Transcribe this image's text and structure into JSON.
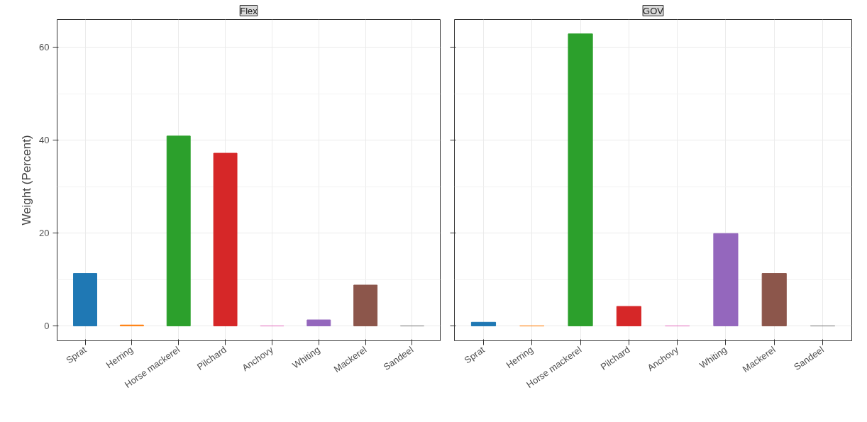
{
  "chart_data": [
    {
      "type": "bar",
      "title": "Flex",
      "ylabel": "Weight (Percent)",
      "categories": [
        "Sprat",
        "Herring",
        "Horse mackerel",
        "Pilchard",
        "Anchovy",
        "Whiting",
        "Mackerel",
        "Sandeel"
      ],
      "values": [
        11.3,
        0.2,
        40.9,
        37.2,
        0,
        1.3,
        8.8,
        0
      ],
      "colors": [
        "#1f78b4",
        "#ff7f0e",
        "#2ca02c",
        "#d62728",
        "#e377c2",
        "#9467bd",
        "#8c564b",
        "#7f7f7f"
      ],
      "ylim": [
        -3.2,
        66
      ],
      "yticks": [
        0,
        20,
        40,
        60
      ],
      "grid": true
    },
    {
      "type": "bar",
      "title": "GOV",
      "categories": [
        "Sprat",
        "Herring",
        "Horse mackerel",
        "Pilchard",
        "Anchovy",
        "Whiting",
        "Mackerel",
        "Sandeel"
      ],
      "values": [
        0.8,
        0,
        62.9,
        4.2,
        0,
        19.9,
        11.3,
        0
      ],
      "colors": [
        "#1f78b4",
        "#ff7f0e",
        "#2ca02c",
        "#d62728",
        "#e377c2",
        "#9467bd",
        "#8c564b",
        "#7f7f7f"
      ],
      "ylim": [
        -3.2,
        66
      ],
      "yticks": [
        0,
        20,
        40,
        60
      ],
      "grid": true,
      "tick_labels": "x"
    }
  ]
}
